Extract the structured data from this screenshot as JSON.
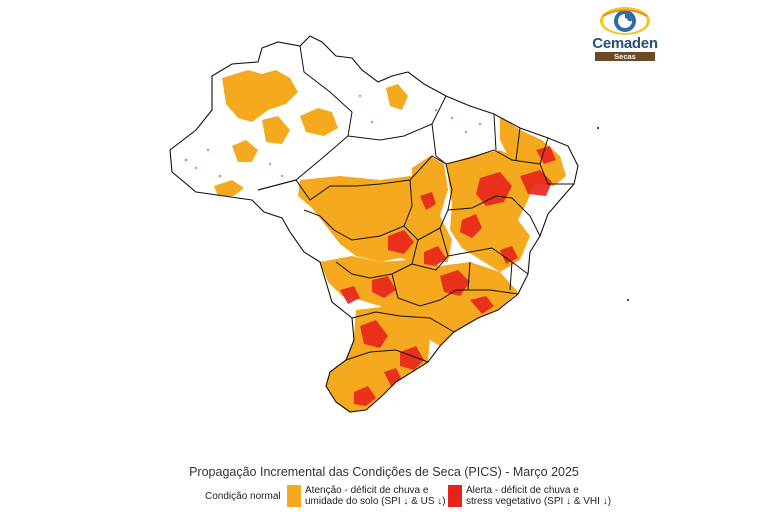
{
  "logo": {
    "name": "Cemaden",
    "tagline": "Secas"
  },
  "title": "Propagação Incremental das Condições de Seca (PICS) - Março 2025",
  "legend": {
    "normal": {
      "label": "Condição normal",
      "color": "#ffffff"
    },
    "attention": {
      "label": "Atenção - déficit de chuva e\numidade do solo (SPI ↓ & US ↓)",
      "color": "#f5a91e"
    },
    "alert": {
      "label": "Alerta - déficit de chuva e\nstress vegetativo (SPI ↓ & VHI ↓)",
      "color": "#e8231b"
    }
  }
}
